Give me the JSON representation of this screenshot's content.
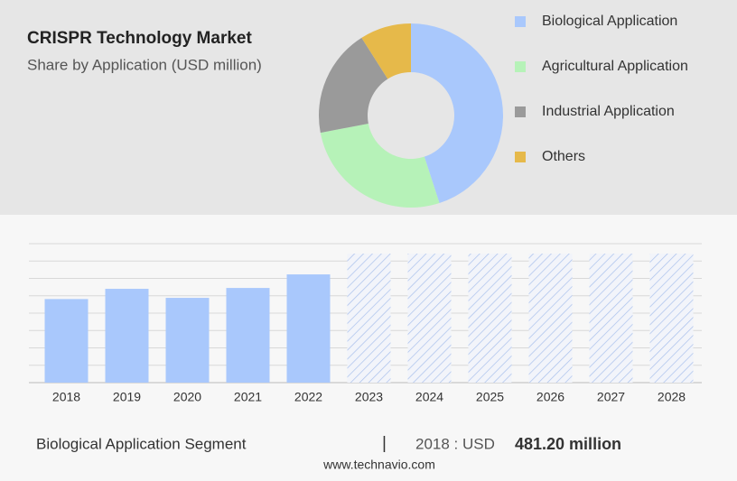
{
  "chart_data": [
    {
      "type": "donut",
      "title": "CRISPR Technology Market",
      "subtitle": "Share by Application (USD million)",
      "categories": [
        "Biological Application",
        "Agricultural Application",
        "Industrial Application",
        "Others"
      ],
      "values": [
        45,
        27,
        19,
        9
      ],
      "colors": [
        "#a9c8fc",
        "#b6f2b8",
        "#9a9a9a",
        "#e6b94a"
      ]
    },
    {
      "type": "bar",
      "categories": [
        "2018",
        "2019",
        "2020",
        "2021",
        "2022",
        "2023",
        "2024",
        "2025",
        "2026",
        "2027",
        "2028"
      ],
      "values": [
        481.2,
        540,
        488,
        545,
        623,
        null,
        null,
        null,
        null,
        null,
        null
      ],
      "color": "#a9c8fc",
      "ylim": [
        0,
        800
      ],
      "grid": true
    },
    {
      "type": "footer",
      "segment": "Biological Application Segment",
      "separator": "|",
      "year_label": "2018 : USD",
      "value_label": "481.20 million",
      "source": "www.technavio.com"
    }
  ]
}
